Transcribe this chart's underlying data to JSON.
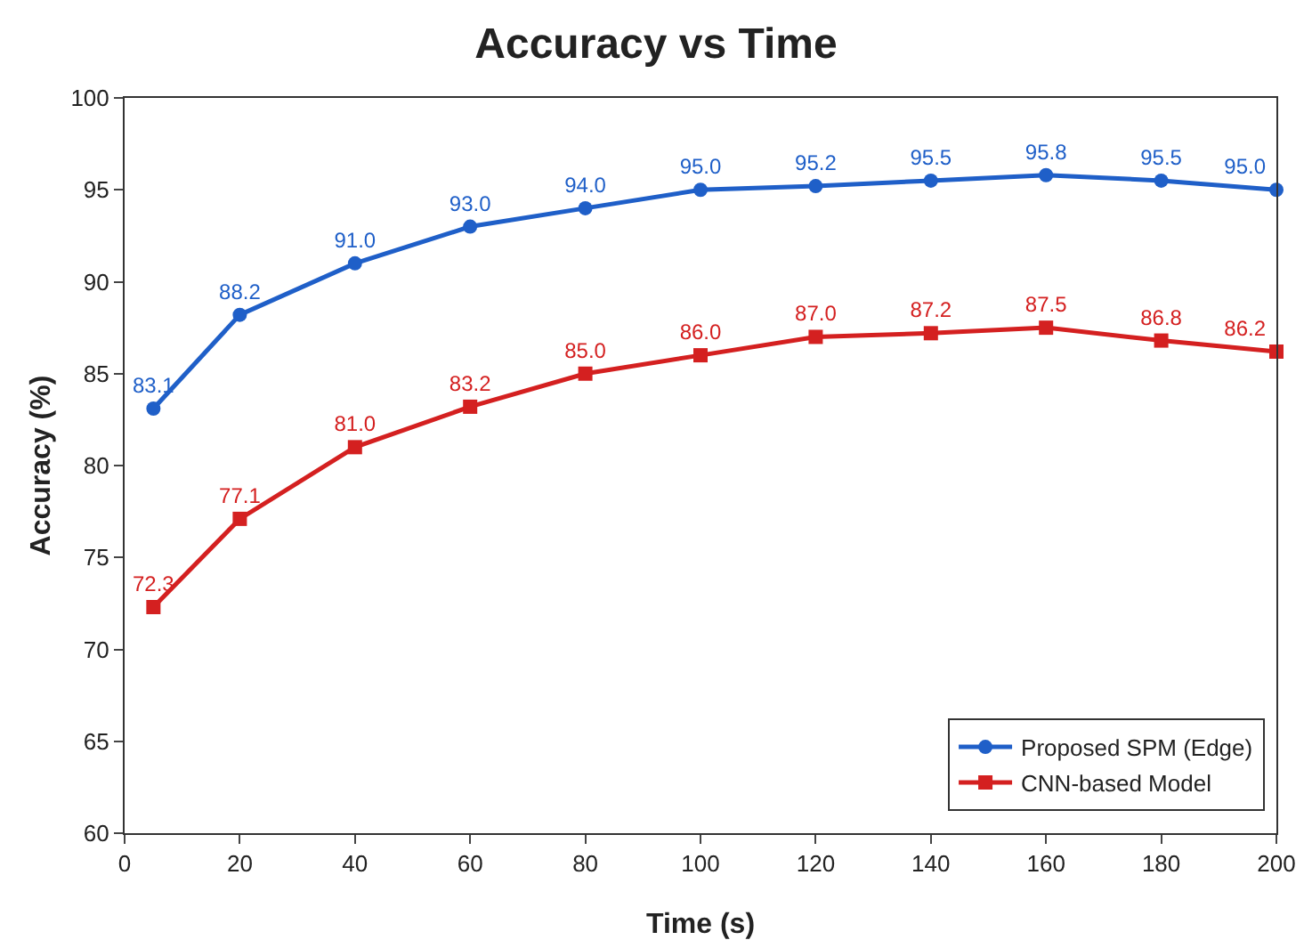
{
  "chart_data": {
    "type": "line",
    "title": "Accuracy vs Time",
    "xlabel": "Time (s)",
    "ylabel": "Accuracy (%)",
    "x": [
      5,
      20,
      40,
      60,
      80,
      100,
      120,
      140,
      160,
      180,
      200
    ],
    "xlim": [
      0,
      200
    ],
    "xticks": [
      0,
      20,
      40,
      60,
      80,
      100,
      120,
      140,
      160,
      180,
      200
    ],
    "ylim": [
      60,
      100
    ],
    "yticks": [
      60,
      65,
      70,
      75,
      80,
      85,
      90,
      95,
      100
    ],
    "grid": false,
    "legend": "bottom right",
    "line_style": "solid",
    "series": [
      {
        "name": "Proposed SPM (Edge)",
        "color": "#1f5fc8",
        "marker": "circle",
        "values": [
          83.1,
          88.2,
          91.0,
          93.0,
          94.0,
          95.0,
          95.2,
          95.5,
          95.8,
          95.5,
          95.0
        ],
        "value_labels": [
          "83.1",
          "88.2",
          "91.0",
          "93.0",
          "94.0",
          "95.0",
          "95.2",
          "95.5",
          "95.8",
          "95.5",
          "95.0"
        ]
      },
      {
        "name": "CNN-based Model",
        "color": "#d42020",
        "marker": "square",
        "values": [
          72.3,
          77.1,
          81.0,
          83.2,
          85.0,
          86.0,
          87.0,
          87.2,
          87.5,
          86.8,
          86.2
        ],
        "value_labels": [
          "72.3",
          "77.1",
          "81.0",
          "83.2",
          "85.0",
          "86.0",
          "87.0",
          "87.2",
          "87.5",
          "86.8",
          "86.2"
        ]
      }
    ]
  }
}
